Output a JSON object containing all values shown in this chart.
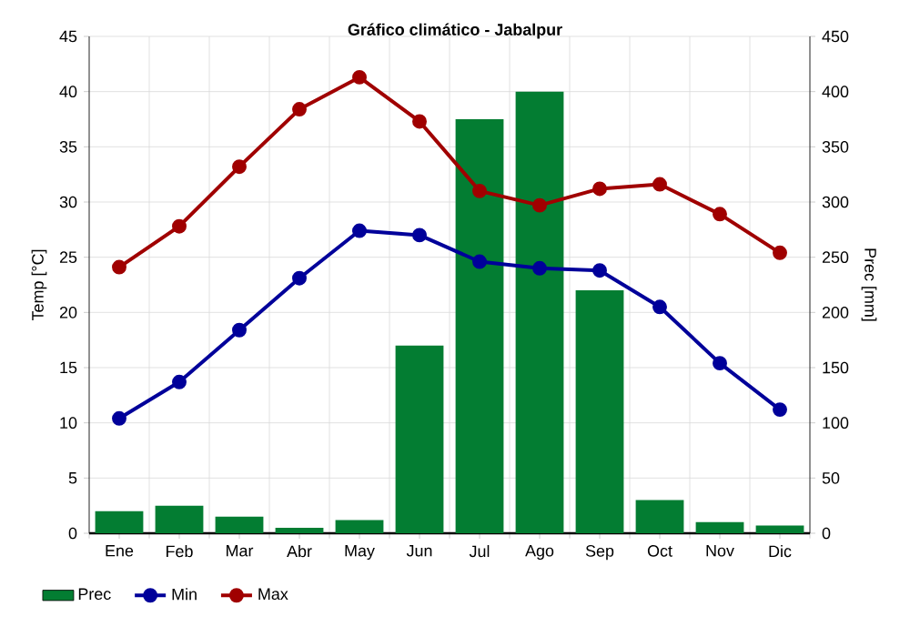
{
  "chart_data": {
    "type": "bar",
    "title": "Gráfico climático - Jabalpur",
    "categories": [
      "Ene",
      "Feb",
      "Mar",
      "Abr",
      "May",
      "Jun",
      "Jul",
      "Ago",
      "Sep",
      "Oct",
      "Nov",
      "Dic"
    ],
    "series": [
      {
        "name": "Prec",
        "axis": "y2",
        "color": "#037d32",
        "values": [
          20,
          25,
          15,
          5,
          12,
          170,
          375,
          400,
          220,
          30,
          10,
          7
        ]
      },
      {
        "name": "Min",
        "type": "line",
        "axis": "y",
        "color": "#00009a",
        "values": [
          10.4,
          13.7,
          18.4,
          23.1,
          27.4,
          27.0,
          24.6,
          24.0,
          23.8,
          20.5,
          15.4,
          11.2
        ]
      },
      {
        "name": "Max",
        "type": "line",
        "axis": "y",
        "color": "#a00000",
        "values": [
          24.1,
          27.8,
          33.2,
          38.4,
          41.3,
          37.3,
          31.0,
          29.7,
          31.2,
          31.6,
          28.9,
          25.4
        ]
      }
    ],
    "ylabel": "Temp [°C]",
    "y2label": "Prec [mm]",
    "ylim": [
      0,
      45
    ],
    "yticks": [
      0,
      5,
      10,
      15,
      20,
      25,
      30,
      35,
      40,
      45
    ],
    "y2lim": [
      0,
      450
    ],
    "y2ticks": [
      0,
      50,
      100,
      150,
      200,
      250,
      300,
      350,
      400,
      450
    ],
    "grid": true,
    "legend": "bottom",
    "marker": "circle"
  }
}
